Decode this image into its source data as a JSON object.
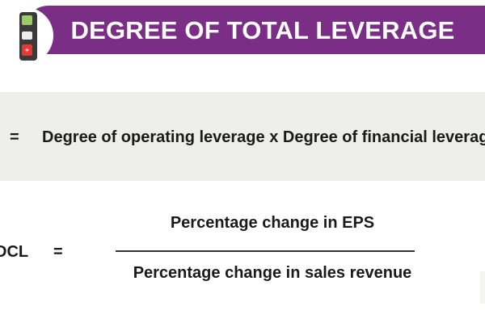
{
  "header": {
    "title": "DEGREE OF TOTAL LEVERAGE",
    "icon": "calculator-icon",
    "icon_key_symbol": "+",
    "banner_color": "#7b2e86"
  },
  "formula1": {
    "equals": "=",
    "expression": "Degree of operating leverage  x  Degree of financial leverage"
  },
  "formula2": {
    "lhs": "DCL",
    "equals": "=",
    "numerator": "Percentage change in EPS",
    "denominator": "Percentage change in sales revenue"
  }
}
